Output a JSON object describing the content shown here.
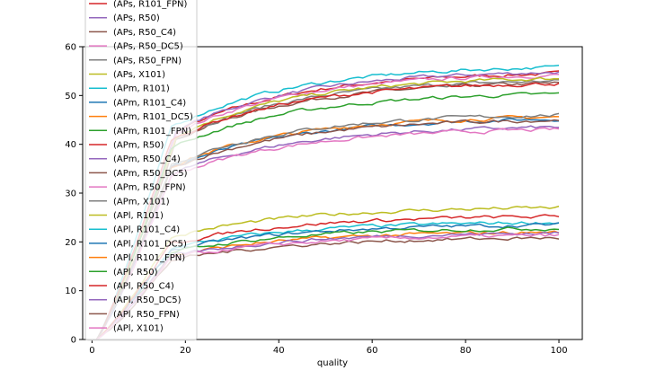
{
  "chart_data": {
    "type": "line",
    "title": "",
    "xlabel": "quality",
    "ylabel": "",
    "xlim": [
      -2,
      105
    ],
    "ylim": [
      0,
      60
    ],
    "xticks": [
      0,
      20,
      40,
      60,
      80,
      100
    ],
    "yticks": [
      0,
      10,
      20,
      30,
      40,
      50,
      60
    ],
    "grid": false,
    "legend_position": "upper-left",
    "x_range": [
      1,
      100
    ],
    "series": [
      {
        "name": "(APs, R101_FPN)",
        "color": "#d62728",
        "final": 54.5,
        "rise": 18
      },
      {
        "name": "(APs, R50)",
        "color": "#9467bd",
        "final": 54.8,
        "rise": 18
      },
      {
        "name": "(APs, R50_C4)",
        "color": "#8c564b",
        "final": 52.5,
        "rise": 18
      },
      {
        "name": "(APs, R50_DC5)",
        "color": "#e377c2",
        "final": 54.2,
        "rise": 18
      },
      {
        "name": "(APs, R50_FPN)",
        "color": "#7f7f7f",
        "final": 53.0,
        "rise": 18
      },
      {
        "name": "(APs, X101)",
        "color": "#bcbd22",
        "final": 53.5,
        "rise": 18
      },
      {
        "name": "(APm, R101)",
        "color": "#17becf",
        "final": 55.8,
        "rise": 17
      },
      {
        "name": "(APm, R101_C4)",
        "color": "#1f77b4",
        "final": 45.2,
        "rise": 17
      },
      {
        "name": "(APm, R101_DC5)",
        "color": "#ff7f0e",
        "final": 45.6,
        "rise": 17
      },
      {
        "name": "(APm, R101_FPN)",
        "color": "#2ca02c",
        "final": 50.3,
        "rise": 17
      },
      {
        "name": "(APm, R50)",
        "color": "#d62728",
        "final": 52.5,
        "rise": 17
      },
      {
        "name": "(APm, R50_C4)",
        "color": "#9467bd",
        "final": 43.5,
        "rise": 17
      },
      {
        "name": "(APm, R50_DC5)",
        "color": "#8c564b",
        "final": 45.0,
        "rise": 17
      },
      {
        "name": "(APm, R50_FPN)",
        "color": "#e377c2",
        "final": 43.0,
        "rise": 17
      },
      {
        "name": "(APm, X101)",
        "color": "#7f7f7f",
        "final": 46.0,
        "rise": 17
      },
      {
        "name": "(APl, R101)",
        "color": "#bcbd22",
        "final": 27.0,
        "rise": 17
      },
      {
        "name": "(APl, R101_C4)",
        "color": "#17becf",
        "final": 24.0,
        "rise": 17
      },
      {
        "name": "(APl, R101_DC5)",
        "color": "#1f77b4",
        "final": 23.5,
        "rise": 17
      },
      {
        "name": "(APl, R101_FPN)",
        "color": "#ff7f0e",
        "final": 22.0,
        "rise": 17
      },
      {
        "name": "(APl, R50)",
        "color": "#2ca02c",
        "final": 22.8,
        "rise": 17
      },
      {
        "name": "(APl, R50_C4)",
        "color": "#d62728",
        "final": 25.2,
        "rise": 17
      },
      {
        "name": "(APl, R50_DC5)",
        "color": "#9467bd",
        "final": 21.8,
        "rise": 17
      },
      {
        "name": "(APl, R50_FPN)",
        "color": "#8c564b",
        "final": 20.8,
        "rise": 17
      },
      {
        "name": "(APl, X101)",
        "color": "#e377c2",
        "final": 21.3,
        "rise": 17
      }
    ]
  }
}
